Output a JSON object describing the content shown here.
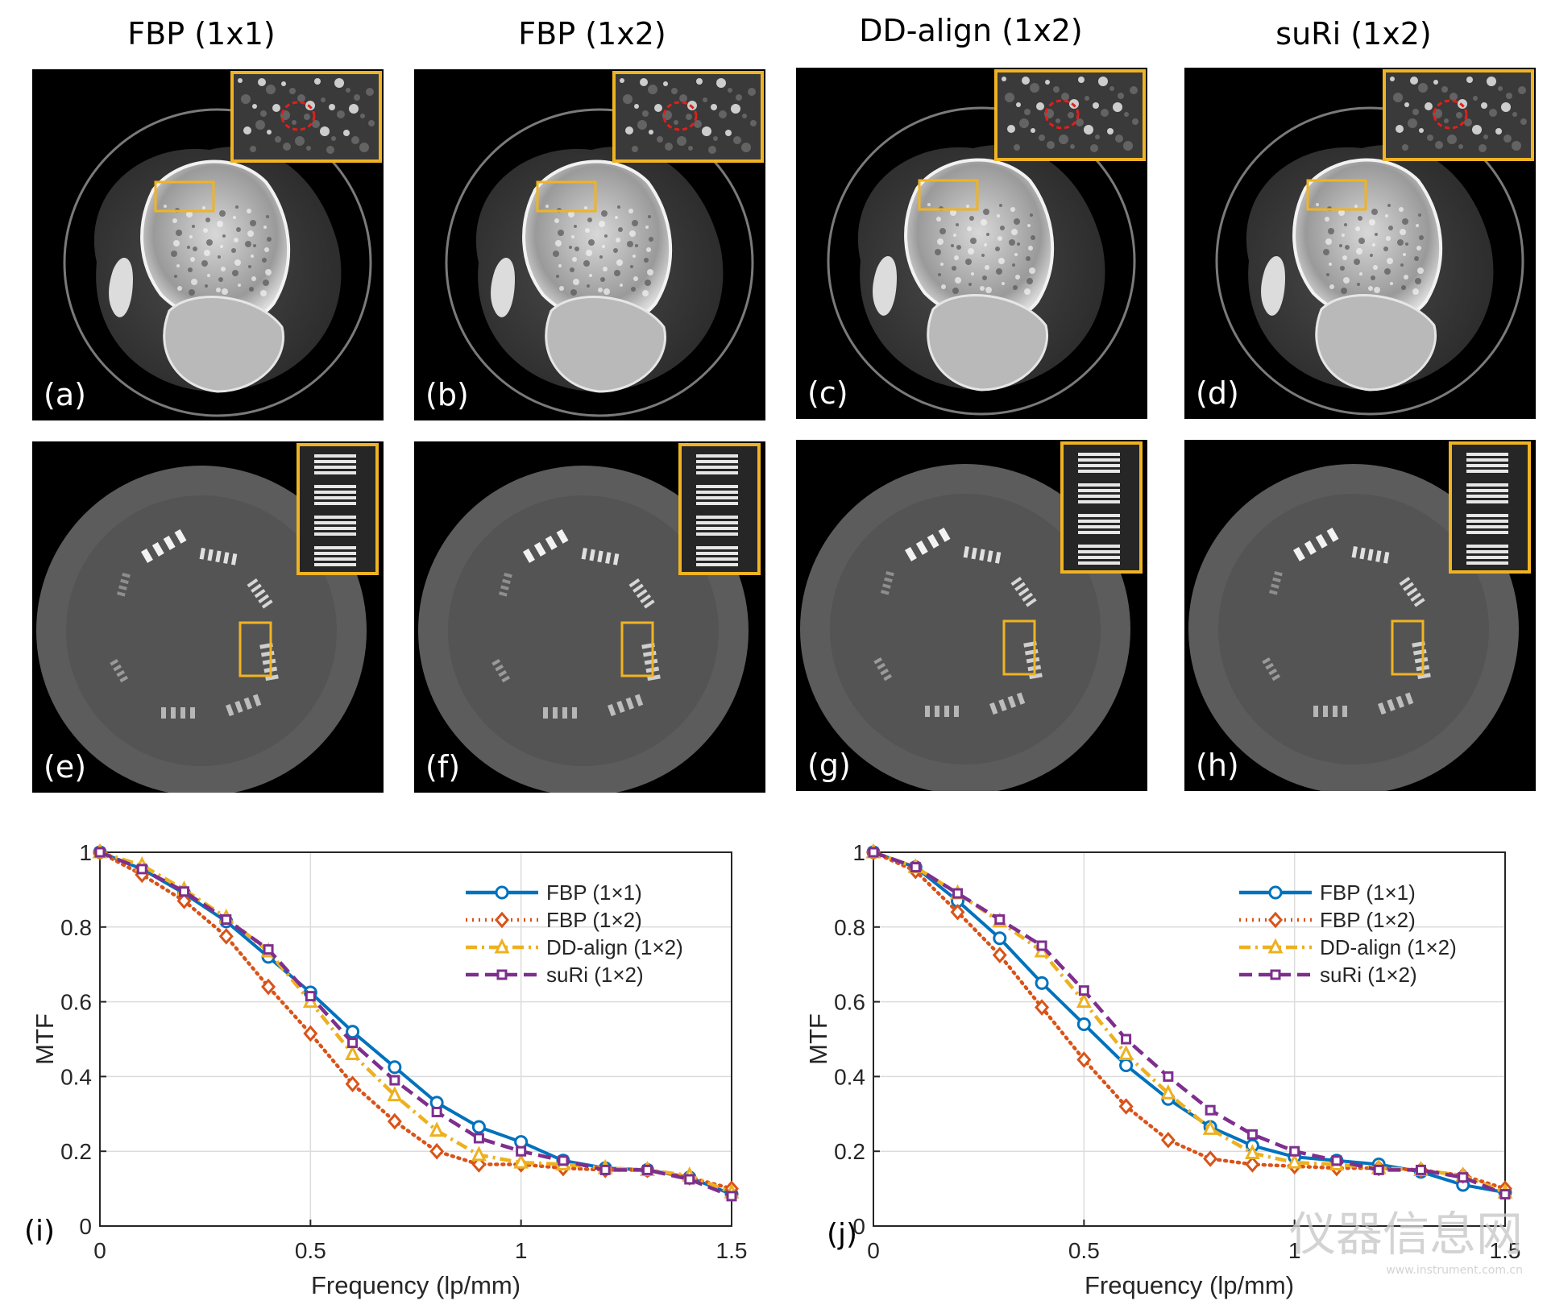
{
  "columns": [
    "FBP (1x1)",
    "FBP (1x2)",
    "DD-align (1x2)",
    "suRi (1x2)"
  ],
  "row1_labels": [
    "(a)",
    "(b)",
    "(c)",
    "(d)"
  ],
  "row2_labels": [
    "(e)",
    "(f)",
    "(g)",
    "(h)"
  ],
  "plot_labels": [
    "(i)",
    "(j)"
  ],
  "colors": {
    "fbp11": "#0072BD",
    "fbp12": "#D95319",
    "ddalign": "#EDB120",
    "suri": "#7E2F8E",
    "inset_box": "#F0B323",
    "roi_circle": "#E0201B"
  },
  "watermark": {
    "text": "仪器信息网",
    "sub": "www.instrument.com.cn"
  },
  "chart_data": [
    {
      "type": "line",
      "xlabel": "Frequency (lp/mm)",
      "ylabel": "MTF",
      "xlim": [
        0,
        1.5
      ],
      "ylim": [
        0,
        1
      ],
      "xticks": [
        "0",
        "0.5",
        "1",
        "1.5"
      ],
      "yticks": [
        "0",
        "0.2",
        "0.4",
        "0.6",
        "0.8",
        "1"
      ],
      "grid": true,
      "legend_position": "upper-right",
      "x": [
        0,
        0.1,
        0.2,
        0.3,
        0.4,
        0.5,
        0.6,
        0.7,
        0.8,
        0.9,
        1.0,
        1.1,
        1.2,
        1.3,
        1.4,
        1.5
      ],
      "series": [
        {
          "name": "FBP (1×1)",
          "marker": "circle",
          "style": "solid",
          "values": [
            1.0,
            0.955,
            0.89,
            0.815,
            0.72,
            0.625,
            0.52,
            0.425,
            0.33,
            0.265,
            0.225,
            0.175,
            0.155,
            0.15,
            0.13,
            0.085
          ]
        },
        {
          "name": "FBP (1×2)",
          "marker": "diamond",
          "style": "dotted",
          "values": [
            1.0,
            0.94,
            0.87,
            0.775,
            0.64,
            0.515,
            0.38,
            0.28,
            0.2,
            0.165,
            0.165,
            0.155,
            0.15,
            0.15,
            0.13,
            0.1
          ]
        },
        {
          "name": "DD-align (1×2)",
          "marker": "triangle",
          "style": "dashdot",
          "values": [
            1.0,
            0.965,
            0.9,
            0.825,
            0.735,
            0.6,
            0.46,
            0.35,
            0.255,
            0.19,
            0.17,
            0.165,
            0.155,
            0.15,
            0.135,
            0.09
          ]
        },
        {
          "name": "suRi (1×2)",
          "marker": "square",
          "style": "dashed",
          "values": [
            1.0,
            0.955,
            0.895,
            0.82,
            0.74,
            0.615,
            0.49,
            0.39,
            0.305,
            0.235,
            0.2,
            0.175,
            0.15,
            0.15,
            0.125,
            0.08
          ]
        }
      ]
    },
    {
      "type": "line",
      "xlabel": "Frequency (lp/mm)",
      "ylabel": "MTF",
      "xlim": [
        0,
        1.5
      ],
      "ylim": [
        0,
        1
      ],
      "xticks": [
        "0",
        "0.5",
        "1",
        "1.5"
      ],
      "yticks": [
        "0",
        "0.2",
        "0.4",
        "0.6",
        "0.8",
        "1"
      ],
      "grid": true,
      "legend_position": "upper-right",
      "x": [
        0,
        0.1,
        0.2,
        0.3,
        0.4,
        0.5,
        0.6,
        0.7,
        0.8,
        0.9,
        1.0,
        1.1,
        1.2,
        1.3,
        1.4,
        1.5
      ],
      "series": [
        {
          "name": "FBP (1×1)",
          "marker": "circle",
          "style": "solid",
          "values": [
            1.0,
            0.96,
            0.87,
            0.77,
            0.65,
            0.54,
            0.43,
            0.34,
            0.265,
            0.215,
            0.185,
            0.175,
            0.165,
            0.145,
            0.11,
            0.09
          ]
        },
        {
          "name": "FBP (1×2)",
          "marker": "diamond",
          "style": "dotted",
          "values": [
            1.0,
            0.95,
            0.84,
            0.725,
            0.585,
            0.445,
            0.32,
            0.23,
            0.18,
            0.165,
            0.16,
            0.155,
            0.155,
            0.15,
            0.135,
            0.1
          ]
        },
        {
          "name": "DD-align (1×2)",
          "marker": "triangle",
          "style": "dashdot",
          "values": [
            1.0,
            0.96,
            0.89,
            0.815,
            0.735,
            0.6,
            0.46,
            0.355,
            0.26,
            0.195,
            0.17,
            0.165,
            0.155,
            0.15,
            0.135,
            0.09
          ]
        },
        {
          "name": "suRi (1×2)",
          "marker": "square",
          "style": "dashed",
          "values": [
            1.0,
            0.96,
            0.89,
            0.82,
            0.75,
            0.63,
            0.5,
            0.4,
            0.31,
            0.245,
            0.2,
            0.175,
            0.15,
            0.15,
            0.13,
            0.085
          ]
        }
      ]
    }
  ]
}
